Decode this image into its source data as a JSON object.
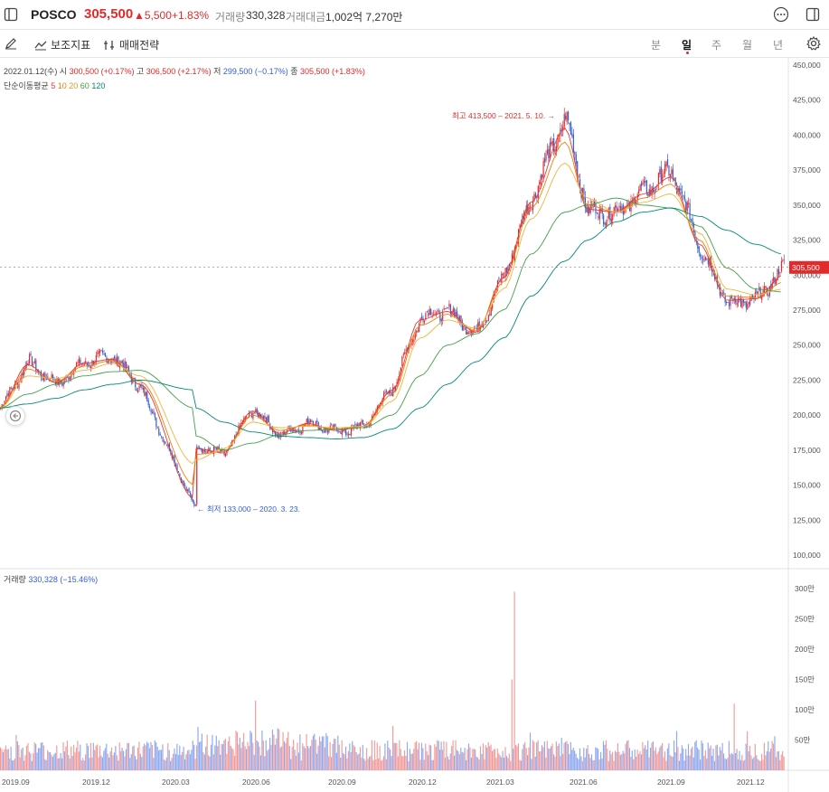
{
  "header": {
    "name": "POSCO",
    "price": "305,500",
    "change": "▲5,500",
    "change_pct": "+1.83%",
    "dot": "·",
    "volume_label": "거래량",
    "volume_value": "330,328",
    "amount_label": "거래대금",
    "amount_value": "1,002억 7,270만"
  },
  "toolbar": {
    "indicator_label": "보조지표",
    "strategy_label": "매매전략",
    "periods": [
      "분",
      "일",
      "주",
      "월",
      "년"
    ],
    "active_period": "일"
  },
  "legend": {
    "date": "2022.01.12(수)",
    "open_label": "시",
    "open_value": "300,500 (+0.17%)",
    "high_label": "고",
    "high_value": "306,500 (+2.17%)",
    "low_label": "저",
    "low_value": "299,500 (−0.17%)",
    "close_label": "종",
    "close_value": "305,500 (+1.83%)",
    "ma_label": "단순이동평균",
    "ma_periods": [
      "5",
      "10",
      "20",
      "60",
      "120"
    ],
    "volume_label": "거래량",
    "volume_value": "330,328 (−15.46%)"
  },
  "colors": {
    "up": "#e22a2a",
    "down": "#3560d6",
    "ma5": "#e53935",
    "ma10": "#f57c00",
    "ma20": "#f2b33d",
    "ma60": "#43a047",
    "ma120": "#00897b"
  },
  "chart_data": [
    {
      "type": "candlestick",
      "title": "",
      "ylim": [
        100000,
        450000
      ],
      "y_ticks": [
        "450,000",
        "425,000",
        "400,000",
        "375,000",
        "350,000",
        "325,000",
        "300,000",
        "275,000",
        "250,000",
        "225,000",
        "200,000",
        "175,000",
        "150,000",
        "125,000",
        "100,000"
      ],
      "x_ticks": [
        "2019.09",
        "2019.12",
        "2020.03",
        "2020.06",
        "2020.09",
        "2020.12",
        "2021.03",
        "2021.06",
        "2021.09",
        "2021.12"
      ],
      "last_price_label": "305,500",
      "annotations": [
        {
          "text": "최고 413,500 – 2021. 5. 10.",
          "date": "2021-05-10",
          "value": 413500
        },
        {
          "text": "최저 133,000 – 2020. 3. 23.",
          "date": "2020-03-23",
          "value": 133000
        }
      ],
      "series": [
        {
          "name": "price",
          "x": [
            "2019-09",
            "2019-10",
            "2019-11",
            "2019-12",
            "2020-01",
            "2020-02",
            "2020-03-23",
            "2020-04",
            "2020-05",
            "2020-06",
            "2020-07",
            "2020-08",
            "2020-09",
            "2020-10",
            "2020-11",
            "2020-12",
            "2021-01",
            "2021-02",
            "2021-03",
            "2021-04",
            "2021-05-10",
            "2021-06",
            "2021-07",
            "2021-08",
            "2021-09",
            "2021-10",
            "2021-11",
            "2021-12",
            "2022-01-12"
          ],
          "values": [
            205000,
            238000,
            222000,
            238000,
            242000,
            220000,
            133000,
            178000,
            172000,
            205000,
            185000,
            195000,
            188000,
            192000,
            220000,
            270000,
            275000,
            258000,
            300000,
            355000,
            413500,
            345000,
            345000,
            360000,
            375000,
            320000,
            280000,
            282000,
            305500
          ]
        },
        {
          "name": "5",
          "values": [
            205000,
            236000,
            223000,
            237000,
            240000,
            222000,
            140000,
            176000,
            173000,
            203000,
            187000,
            194000,
            189000,
            192000,
            218000,
            268000,
            274000,
            259000,
            298000,
            352000,
            405000,
            347000,
            345000,
            358000,
            370000,
            322000,
            282000,
            283000,
            300000
          ]
        },
        {
          "name": "10",
          "values": [
            205000,
            233000,
            224000,
            235000,
            239000,
            224000,
            150000,
            172000,
            174000,
            200000,
            189000,
            193000,
            190000,
            192000,
            215000,
            264000,
            272000,
            260000,
            295000,
            348000,
            395000,
            350000,
            345000,
            355000,
            365000,
            325000,
            285000,
            284000,
            295000
          ]
        },
        {
          "name": "20",
          "values": [
            205000,
            228000,
            226000,
            232000,
            237000,
            228000,
            165000,
            168000,
            176000,
            195000,
            191000,
            192000,
            191000,
            192000,
            210000,
            255000,
            268000,
            262000,
            290000,
            340000,
            380000,
            355000,
            345000,
            352000,
            358000,
            330000,
            290000,
            286000,
            290000
          ]
        },
        {
          "name": "60",
          "values": [
            205000,
            215000,
            222000,
            228000,
            231000,
            232000,
            205000,
            185000,
            175000,
            180000,
            186000,
            189000,
            190000,
            191000,
            200000,
            228000,
            250000,
            258000,
            275000,
            315000,
            345000,
            350000,
            355000,
            350000,
            348000,
            335000,
            305000,
            290000,
            288000
          ]
        },
        {
          "name": "120",
          "values": [
            205000,
            208000,
            212000,
            218000,
            222000,
            225000,
            218000,
            205000,
            195000,
            188000,
            185000,
            184000,
            183000,
            184000,
            190000,
            205000,
            222000,
            238000,
            255000,
            285000,
            310000,
            325000,
            338000,
            345000,
            348000,
            342000,
            332000,
            322000,
            315000
          ]
        }
      ]
    },
    {
      "type": "bar",
      "title": "",
      "ylim": [
        0,
        3200000
      ],
      "y_ticks": [
        "300만",
        "250만",
        "200만",
        "150만",
        "100만",
        "50만"
      ],
      "peaks": [
        {
          "date": "2021-03",
          "value": 2950000
        },
        {
          "date": "2021-03",
          "value": 1500000
        },
        {
          "date": "2020-06",
          "value": 1150000
        },
        {
          "date": "2021-11",
          "value": 1100000
        },
        {
          "date": "2022-01-12",
          "value": 330328
        }
      ]
    }
  ]
}
